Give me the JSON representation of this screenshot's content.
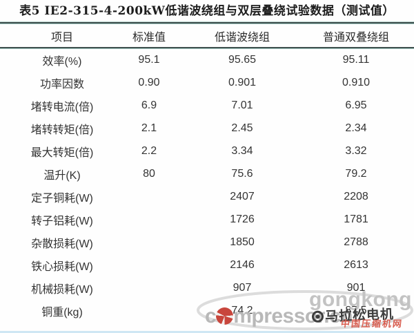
{
  "title": "表5  IE2-315-4-200kW低谐波绕组与双层叠绕试验数据（测试值）",
  "table": {
    "headers": [
      "项目",
      "标准值",
      "低谐波绕组",
      "普通双叠绕组"
    ],
    "rows": [
      [
        "效率(%)",
        "95.1",
        "95.65",
        "95.11"
      ],
      [
        "功率因数",
        "0.90",
        "0.901",
        "0.910"
      ],
      [
        "堵转电流(倍)",
        "6.9",
        "7.01",
        "6.95"
      ],
      [
        "堵转转矩(倍)",
        "2.1",
        "2.45",
        "2.34"
      ],
      [
        "最大转矩(倍)",
        "2.2",
        "3.34",
        "3.32"
      ],
      [
        "温升(K)",
        "80",
        "75.6",
        "79.2"
      ],
      [
        "定子铜耗(W)",
        "",
        "2407",
        "2208"
      ],
      [
        "转子铝耗(W)",
        "",
        "1726",
        "1781"
      ],
      [
        "杂散损耗(W)",
        "",
        "1850",
        "2788"
      ],
      [
        "铁心损耗(W)",
        "",
        "2146",
        "2613"
      ],
      [
        "机械损耗(W)",
        "",
        "907",
        "901"
      ],
      [
        "铜重(kg)",
        "",
        "74.2",
        "87.5"
      ]
    ]
  },
  "watermark": {
    "gongkong_text": "gongkong",
    "compressor_prefix": "c",
    "compressor_suffix": "mpressor.cn",
    "overlay_logo_text": "马拉松电机",
    "site_name_cn": "中国压缩机网"
  },
  "colors": {
    "rule_dark": "#3f504e",
    "rule_teal": "#a9cdc6",
    "bottom_line_blue": "#cfe7f4",
    "watermark_gray": "#c3c3c3",
    "watermark_red": "#d85c4e",
    "text": "#333333"
  }
}
